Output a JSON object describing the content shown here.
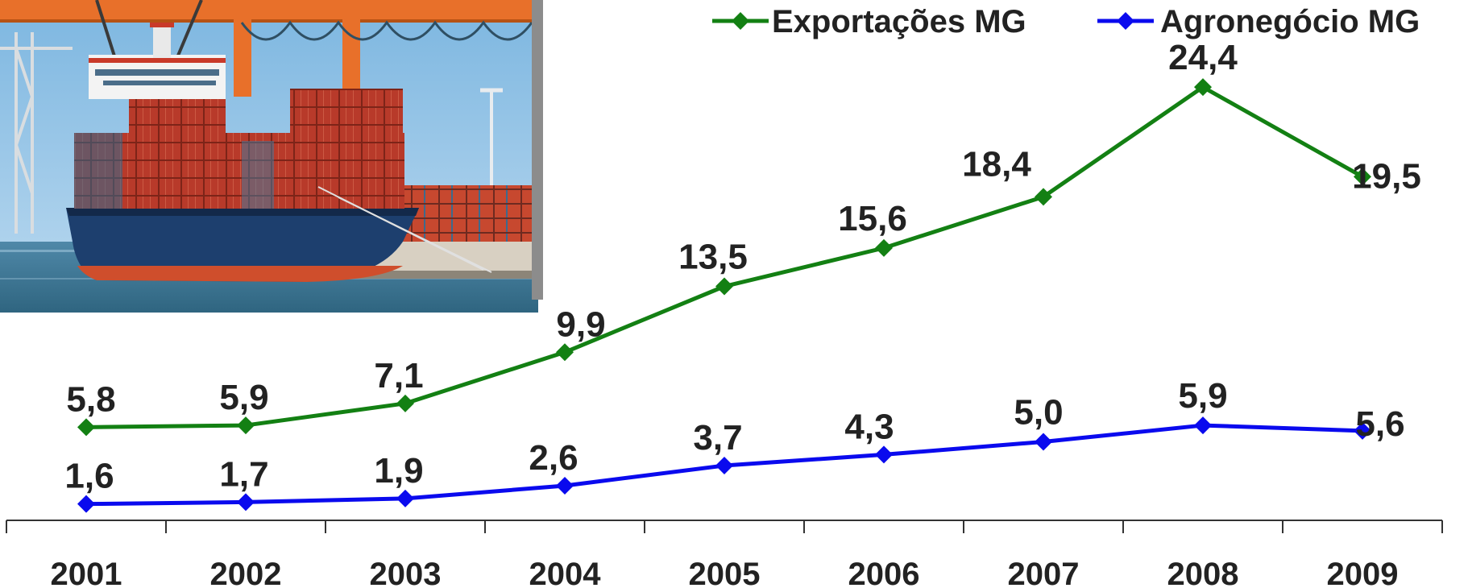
{
  "chart_data": {
    "type": "line",
    "categories": [
      "2001",
      "2002",
      "2003",
      "2004",
      "2005",
      "2006",
      "2007",
      "2008",
      "2009"
    ],
    "series": [
      {
        "name": "Exportações MG",
        "color": "#138013",
        "values": [
          5.8,
          5.9,
          7.1,
          9.9,
          13.5,
          15.6,
          18.4,
          24.4,
          19.5
        ],
        "labels": [
          "5,8",
          "5,9",
          "7,1",
          "9,9",
          "13,5",
          "15,6",
          "18,4",
          "24,4",
          "19,5"
        ]
      },
      {
        "name": "Agronegócio MG",
        "color": "#0a0aee",
        "values": [
          1.6,
          1.7,
          1.9,
          2.6,
          3.7,
          4.3,
          5.0,
          5.9,
          5.6
        ],
        "labels": [
          "1,6",
          "1,7",
          "1,9",
          "2,6",
          "3,7",
          "4,3",
          "5,0",
          "5,9",
          "5,6"
        ]
      }
    ],
    "ylim": [
      0,
      26.5
    ],
    "grid": false,
    "legend_position": "top-right",
    "marker": "diamond",
    "photo": "container ship at port"
  }
}
